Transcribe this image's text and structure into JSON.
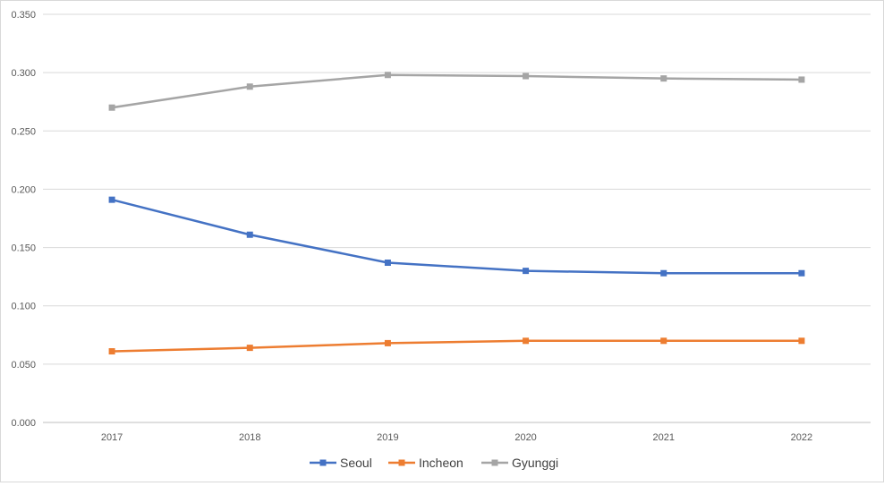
{
  "chart_data": {
    "type": "line",
    "title": "",
    "xlabel": "",
    "ylabel": "",
    "categories": [
      "2017",
      "2018",
      "2019",
      "2020",
      "2021",
      "2022"
    ],
    "ylim": [
      0,
      0.35
    ],
    "yticks": [
      "0.000",
      "0.050",
      "0.100",
      "0.150",
      "0.200",
      "0.250",
      "0.300",
      "0.350"
    ],
    "grid": true,
    "legend_position": "bottom",
    "series": [
      {
        "name": "Seoul",
        "color": "#4472c4",
        "values": [
          0.191,
          0.161,
          0.137,
          0.13,
          0.128,
          0.128
        ]
      },
      {
        "name": "Incheon",
        "color": "#ed7d31",
        "values": [
          0.061,
          0.064,
          0.068,
          0.07,
          0.07,
          0.07
        ]
      },
      {
        "name": "Gyunggi",
        "color": "#a5a5a5",
        "values": [
          0.27,
          0.288,
          0.298,
          0.297,
          0.295,
          0.294
        ]
      }
    ]
  }
}
